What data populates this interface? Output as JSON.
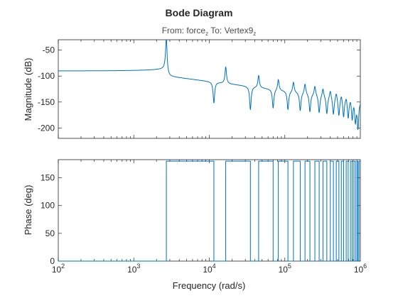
{
  "chart_data": {
    "type": "line",
    "title": "Bode Diagram",
    "subtitle": {
      "from_label": "From:",
      "from_value": "force",
      "from_sub": "z",
      "to_label": "To:",
      "to_value": "Vertex9",
      "to_sub": "z"
    },
    "xlabel": "Frequency (rad/s)",
    "xscale": "log",
    "xlim": [
      100,
      1000000
    ],
    "x_ticks": [
      {
        "base": "10",
        "exp": "2",
        "value": 100
      },
      {
        "base": "10",
        "exp": "3",
        "value": 1000
      },
      {
        "base": "10",
        "exp": "4",
        "value": 10000
      },
      {
        "base": "10",
        "exp": "5",
        "value": 100000
      },
      {
        "base": "10",
        "exp": "6",
        "value": 1000000
      }
    ],
    "magnitude": {
      "ylabel": "Magnitude (dB)",
      "ylim": [
        -220,
        -30
      ],
      "y_ticks": [
        "-50",
        "-100",
        "-150",
        "-200"
      ],
      "y_tick_values": [
        -50,
        -100,
        -150,
        -200
      ],
      "baseline_db": -90,
      "resonances": [
        2700,
        16500,
        45000,
        82000,
        130000,
        185000,
        250000,
        320000,
        400000,
        480000,
        560000,
        650000,
        740000,
        820000,
        900000,
        960000
      ],
      "anti_resonances": [
        11500,
        35000,
        70000,
        110000,
        160000,
        215000,
        285000,
        360000,
        440000,
        520000,
        600000,
        690000,
        780000,
        860000,
        930000
      ],
      "resonance_peaks_db": [
        -27,
        -82,
        -98,
        -105,
        -110,
        -113,
        -117,
        -121,
        -124,
        -127,
        -130,
        -133,
        -136,
        -139,
        -142,
        -145
      ],
      "anti_resonance_dips_db": [
        -152,
        -165,
        -162,
        -165,
        -167,
        -169,
        -171,
        -173,
        -174,
        -176,
        -178,
        -180,
        -182,
        -186,
        -200
      ]
    },
    "phase": {
      "ylabel": "Phase (deg)",
      "ylim": [
        0,
        180
      ],
      "y_ticks": [
        "0",
        "50",
        "100",
        "150"
      ],
      "y_tick_values": [
        0,
        50,
        100,
        150
      ],
      "switch_frequencies": [
        2700,
        11500,
        16500,
        35000,
        45000,
        70000,
        82000,
        110000,
        130000,
        160000,
        185000,
        215000,
        250000,
        285000,
        320000,
        360000,
        400000,
        440000,
        480000,
        520000,
        560000,
        600000,
        650000,
        690000,
        740000,
        780000,
        820000,
        860000,
        900000,
        930000,
        960000
      ],
      "start_value_deg": 0
    },
    "grid": false,
    "line_color": "#0072bd"
  }
}
